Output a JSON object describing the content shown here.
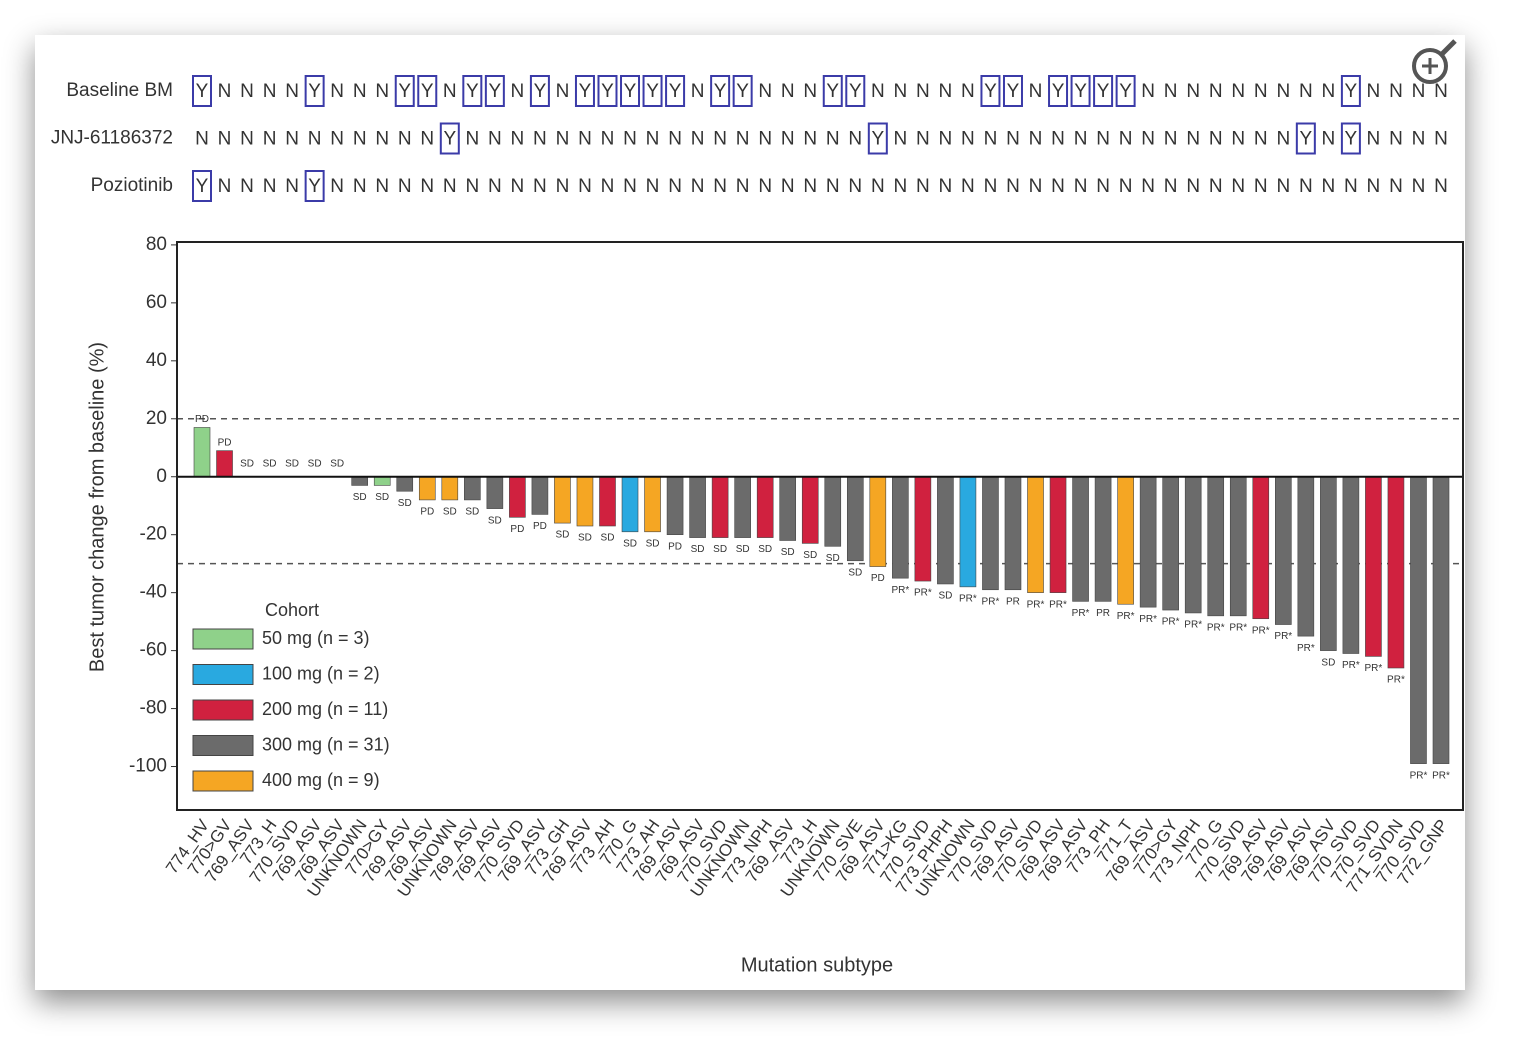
{
  "chart_data": {
    "type": "bar",
    "x_label": "Mutation subtype",
    "y_label": "Best tumor change from baseline (%)",
    "categories": [
      "774_HV",
      "770>GV",
      "769_ASV",
      "773_H",
      "770_SVD",
      "769_ASV",
      "769_ASV",
      "UNKNOWN",
      "770>GY",
      "769_ASV",
      "769_ASV",
      "UNKNOWN",
      "769_ASV",
      "769_ASV",
      "770_SVD",
      "769_ASV",
      "773_GH",
      "769_ASV",
      "773_AH",
      "770_G",
      "773_AH",
      "769_ASV",
      "769_ASV",
      "770_SVD",
      "UNKNOWN",
      "773_NPH",
      "769_ASV",
      "773_H",
      "UNKNOWN",
      "770_SVE",
      "769_ASV",
      "771>KG",
      "770_SVD",
      "773_PHPH",
      "UNKNOWN",
      "770_SVD",
      "769_ASV",
      "770_SVD",
      "769_ASV",
      "769_ASV",
      "773_PH",
      "771_T",
      "769_ASV",
      "770>GY",
      "773_NPH",
      "770_G",
      "770_SVD",
      "769_ASV",
      "769_ASV",
      "769_ASV",
      "769_ASV",
      "770_SVD",
      "770_SVD",
      "771_SVDN",
      "770_SVD",
      "772_GNP"
    ],
    "values": [
      17,
      9,
      0,
      0,
      0,
      0,
      0,
      -3,
      -3,
      -5,
      -8,
      -8,
      -8,
      -11,
      -14,
      -13,
      -16,
      -17,
      -17,
      -19,
      -19,
      -20,
      -21,
      -21,
      -21,
      -21,
      -22,
      -23,
      -24,
      -29,
      -31,
      -35,
      -36,
      -37,
      -38,
      -39,
      -39,
      -40,
      -40,
      -43,
      -43,
      -44,
      -45,
      -46,
      -47,
      -48,
      -48,
      -49,
      -51,
      -55,
      -60,
      -61,
      -62,
      -66,
      -99,
      -99
    ],
    "responses": [
      "PD",
      "PD",
      "SD",
      "SD",
      "SD",
      "SD",
      "SD",
      "SD",
      "SD",
      "SD",
      "PD",
      "SD",
      "SD",
      "SD",
      "PD",
      "PD",
      "SD",
      "SD",
      "SD",
      "SD",
      "SD",
      "PD",
      "SD",
      "SD",
      "SD",
      "SD",
      "SD",
      "SD",
      "SD",
      "SD",
      "PD",
      "PR*",
      "PR*",
      "SD",
      "PR*",
      "PR*",
      "PR",
      "PR*",
      "PR*",
      "PR*",
      "PR",
      "PR*",
      "PR*",
      "PR*",
      "PR*",
      "PR*",
      "PR*",
      "PR*",
      "PR*",
      "PR*",
      "SD",
      "PR*",
      "PR*",
      "PR*",
      "PR*",
      "PR*"
    ],
    "bar_colors": [
      "#8fd18a",
      "#d0213f",
      "#8fd18a",
      "#f5a623",
      "#6b6b6b",
      "#6b6b6b",
      "#6b6b6b",
      "#6b6b6b",
      "#8fd18a",
      "#6b6b6b",
      "#f5a623",
      "#f5a623",
      "#6b6b6b",
      "#6b6b6b",
      "#d0213f",
      "#6b6b6b",
      "#f5a623",
      "#f5a623",
      "#d0213f",
      "#29a9e0",
      "#f5a623",
      "#6b6b6b",
      "#6b6b6b",
      "#d0213f",
      "#6b6b6b",
      "#d0213f",
      "#6b6b6b",
      "#d0213f",
      "#6b6b6b",
      "#6b6b6b",
      "#f5a623",
      "#6b6b6b",
      "#d0213f",
      "#6b6b6b",
      "#29a9e0",
      "#6b6b6b",
      "#6b6b6b",
      "#f5a623",
      "#d0213f",
      "#6b6b6b",
      "#6b6b6b",
      "#f5a623",
      "#6b6b6b",
      "#6b6b6b",
      "#6b6b6b",
      "#6b6b6b",
      "#6b6b6b",
      "#d0213f",
      "#6b6b6b",
      "#6b6b6b",
      "#6b6b6b",
      "#6b6b6b",
      "#d0213f",
      "#d0213f",
      "#6b6b6b",
      "#6b6b6b"
    ],
    "ylim": [
      -115,
      81
    ],
    "yticks": [
      80,
      60,
      40,
      20,
      0,
      -20,
      -40,
      -60,
      -80,
      -100
    ],
    "reference_lines": [
      20,
      -30
    ],
    "legend": {
      "title": "Cohort",
      "entries": [
        {
          "label": "50 mg (n = 3)",
          "color": "#8fd18a"
        },
        {
          "label": "100 mg (n = 2)",
          "color": "#29a9e0"
        },
        {
          "label": "200 mg (n = 11)",
          "color": "#d0213f"
        },
        {
          "label": "300 mg (n = 31)",
          "color": "#6b6b6b"
        },
        {
          "label": "400 mg (n = 9)",
          "color": "#f5a623"
        }
      ]
    },
    "indicator_rows": [
      {
        "name": "Baseline BM",
        "values": [
          "Y",
          "N",
          "N",
          "N",
          "N",
          "Y",
          "N",
          "N",
          "N",
          "Y",
          "Y",
          "N",
          "Y",
          "Y",
          "N",
          "Y",
          "N",
          "Y",
          "Y",
          "Y",
          "Y",
          "Y",
          "N",
          "Y",
          "Y",
          "N",
          "N",
          "N",
          "Y",
          "Y",
          "N",
          "N",
          "N",
          "N",
          "N",
          "Y",
          "Y",
          "N",
          "Y",
          "Y",
          "Y",
          "Y",
          "N",
          "N",
          "N",
          "N",
          "N",
          "N",
          "N",
          "N",
          "N",
          "Y",
          "N",
          "N",
          "N",
          "N"
        ]
      },
      {
        "name": "JNJ-61186372",
        "values": [
          "N",
          "N",
          "N",
          "N",
          "N",
          "N",
          "N",
          "N",
          "N",
          "N",
          "N",
          "Y",
          "N",
          "N",
          "N",
          "N",
          "N",
          "N",
          "N",
          "N",
          "N",
          "N",
          "N",
          "N",
          "N",
          "N",
          "N",
          "N",
          "N",
          "N",
          "Y",
          "N",
          "N",
          "N",
          "N",
          "N",
          "N",
          "N",
          "N",
          "N",
          "N",
          "N",
          "N",
          "N",
          "N",
          "N",
          "N",
          "N",
          "N",
          "Y",
          "N",
          "Y",
          "N",
          "N",
          "N",
          "N"
        ]
      },
      {
        "name": "Poziotinib",
        "values": [
          "Y",
          "N",
          "N",
          "N",
          "N",
          "Y",
          "N",
          "N",
          "N",
          "N",
          "N",
          "N",
          "N",
          "N",
          "N",
          "N",
          "N",
          "N",
          "N",
          "N",
          "N",
          "N",
          "N",
          "N",
          "N",
          "N",
          "N",
          "N",
          "N",
          "N",
          "N",
          "N",
          "N",
          "N",
          "N",
          "N",
          "N",
          "N",
          "N",
          "N",
          "N",
          "N",
          "N",
          "N",
          "N",
          "N",
          "N",
          "N",
          "N",
          "N",
          "N",
          "N",
          "N",
          "N",
          "N",
          "N"
        ]
      }
    ]
  }
}
